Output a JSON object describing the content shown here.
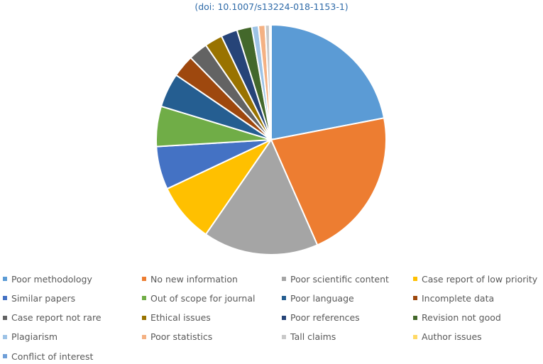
{
  "caption": "(doi: 10.1007/s13224-018-1153-1)",
  "chart_data": {
    "type": "pie",
    "title": "",
    "legend_position": "bottom",
    "categories": [
      "Poor methodology",
      "No new information",
      "Poor scientific content",
      "Case report of low priority",
      "Similar papers",
      "Out of scope for journal",
      "Poor language",
      "Incomplete data",
      "Case report not rare",
      "Ethical issues",
      "Poor references",
      "Revision not good",
      "Plagiarism",
      "Poor statistics",
      "Tall claims",
      "Author issues",
      "Conflict of interest"
    ],
    "values": [
      21.0,
      20.5,
      15.5,
      8.0,
      5.8,
      5.4,
      4.6,
      3.0,
      2.6,
      2.4,
      2.2,
      2.0,
      0.9,
      0.9,
      0.6,
      0.1,
      0.1
    ],
    "colors": [
      "#5b9bd5",
      "#ed7d31",
      "#a5a5a5",
      "#ffc000",
      "#4472c4",
      "#70ad47",
      "#255e91",
      "#9e480e",
      "#636363",
      "#997300",
      "#264478",
      "#43682b",
      "#9dc3e6",
      "#f4b183",
      "#c9c9c9",
      "#ffd966",
      "#6f9fd8"
    ]
  }
}
